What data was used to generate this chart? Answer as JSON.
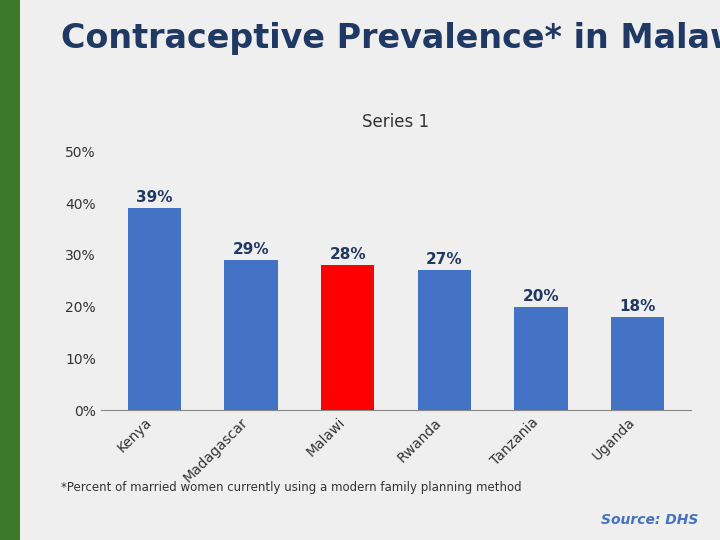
{
  "categories": [
    "Kenya",
    "Madagascar",
    "Malawi",
    "Rwanda",
    "Tanzania",
    "Uganda"
  ],
  "values": [
    39,
    29,
    28,
    27,
    20,
    18
  ],
  "bar_colors": [
    "#4472C4",
    "#4472C4",
    "#FF0000",
    "#4472C4",
    "#4472C4",
    "#4472C4"
  ],
  "title": "Contraceptive Prevalence* in Malawi",
  "subtitle": "Series 1",
  "ylim": [
    0,
    50
  ],
  "yticks": [
    0,
    10,
    20,
    30,
    40,
    50
  ],
  "ytick_labels": [
    "0%",
    "10%",
    "20%",
    "30%",
    "40%",
    "50%"
  ],
  "background_color": "#F0EFEF",
  "plot_bg_color": "#F0EFEF",
  "title_color": "#1F3864",
  "title_fontsize": 24,
  "subtitle_fontsize": 12,
  "bar_label_fontsize": 11,
  "tick_fontsize": 10,
  "footnote": "*Percent of married women currently using a modern family planning method",
  "source": "Source: DHS",
  "left_border_green": "#3A7A28",
  "left_border_dark": "#2B5E1A"
}
